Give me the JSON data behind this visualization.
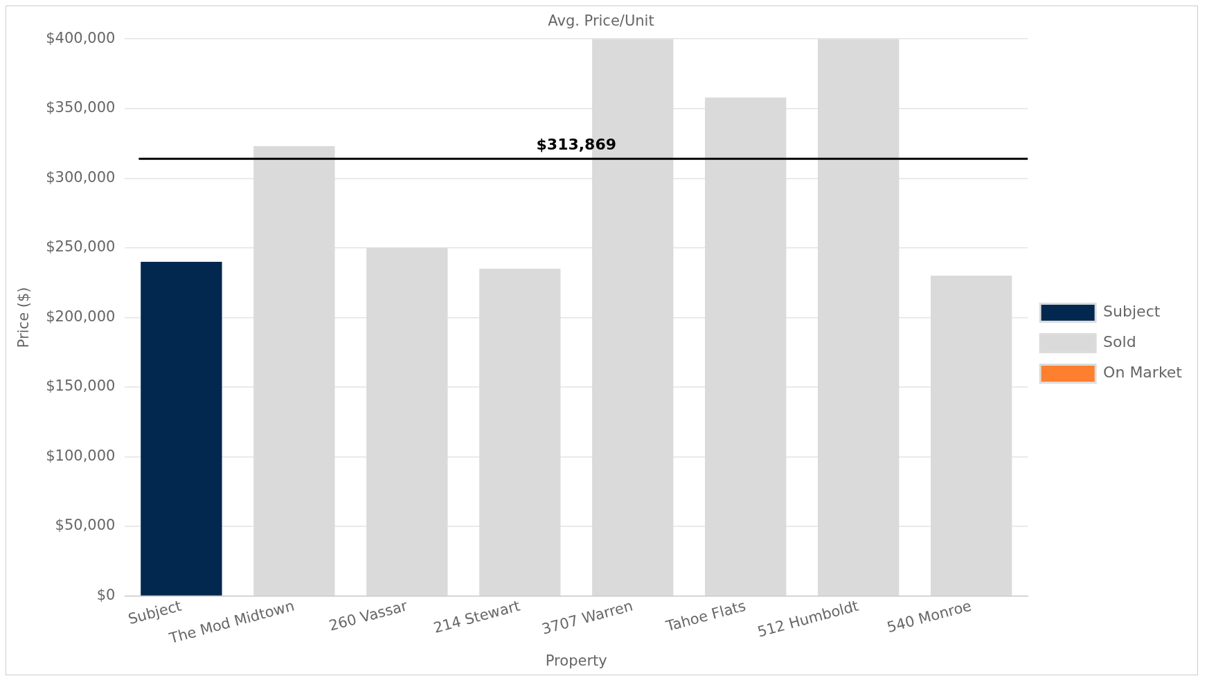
{
  "chart_data": {
    "type": "bar",
    "title": "Avg. Price/Unit",
    "xlabel": "Property",
    "ylabel": "Price ($)",
    "categories": [
      "Subject",
      "The Mod Midtown",
      "260 Vassar",
      "214 Stewart",
      "3707 Warren",
      "Tahoe Flats",
      "512 Humboldt",
      "540 Monroe"
    ],
    "series": [
      {
        "name": "Subject",
        "color": "#03284f",
        "values": [
          240000,
          null,
          null,
          null,
          null,
          null,
          null,
          null
        ]
      },
      {
        "name": "Sold",
        "color": "#d9dad9",
        "values": [
          null,
          323000,
          250000,
          235000,
          400000,
          358000,
          400000,
          230000
        ]
      },
      {
        "name": "On Market",
        "color": "#fe7f2d",
        "values": [
          null,
          null,
          null,
          null,
          null,
          null,
          null,
          null
        ]
      }
    ],
    "stacked": true,
    "ylim": [
      0,
      400000
    ],
    "yticks": [
      {
        "value": 0,
        "label": "$0"
      },
      {
        "value": 50000,
        "label": "$50,000"
      },
      {
        "value": 100000,
        "label": "$100,000"
      },
      {
        "value": 150000,
        "label": "$150,000"
      },
      {
        "value": 200000,
        "label": "$200,000"
      },
      {
        "value": 250000,
        "label": "$250,000"
      },
      {
        "value": 300000,
        "label": "$300,000"
      },
      {
        "value": 350000,
        "label": "$350,000"
      },
      {
        "value": 400000,
        "label": "$400,000"
      }
    ],
    "ref_lines": [
      {
        "axis": "y",
        "value": 313869,
        "label": "$313,869",
        "color": "#000000"
      }
    ],
    "grid": "y",
    "legend": "right"
  }
}
